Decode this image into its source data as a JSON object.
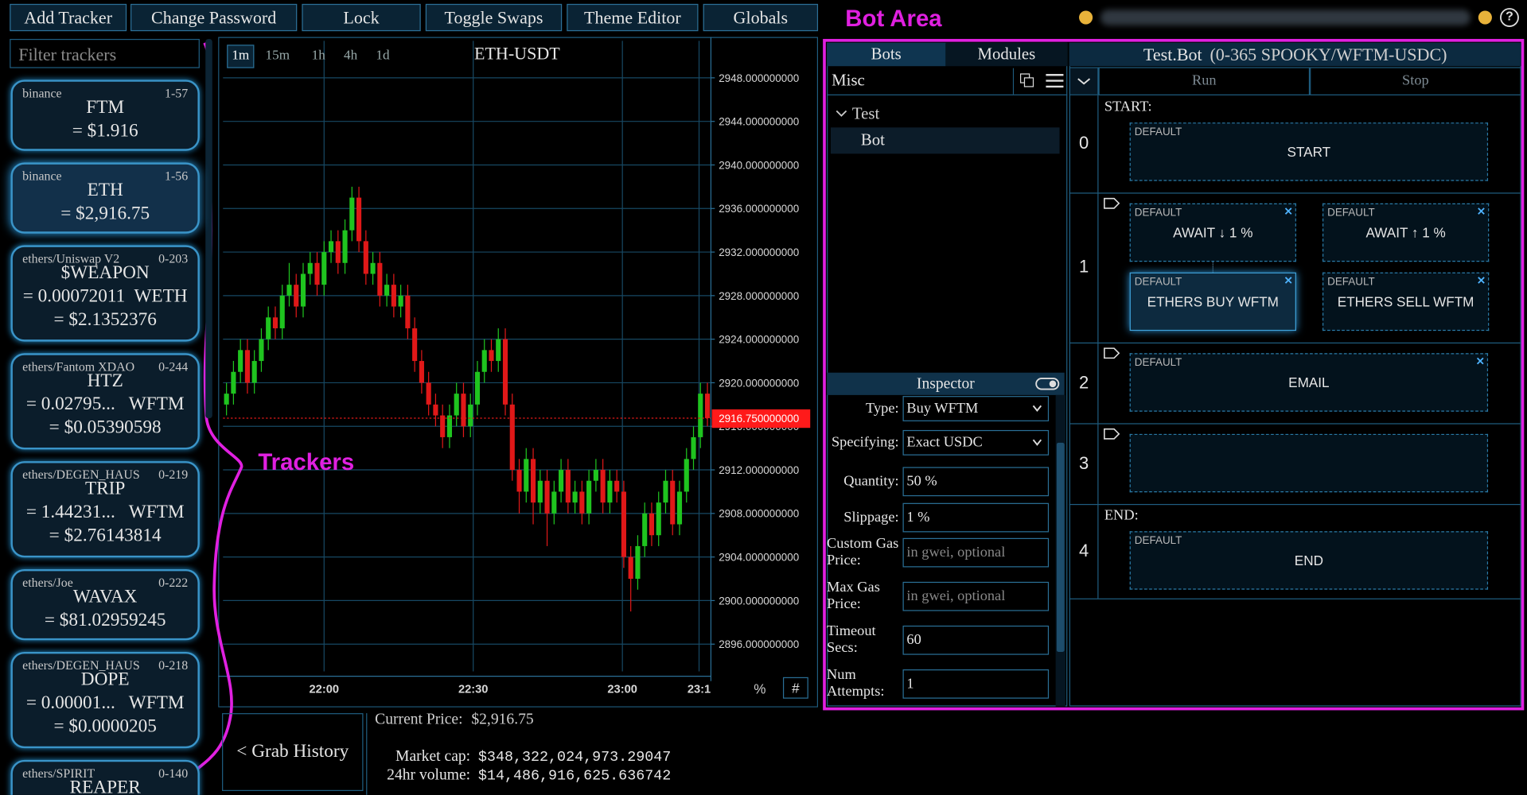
{
  "nav": {
    "buttons": [
      "Add Tracker",
      "Change Password",
      "Lock",
      "Toggle Swaps",
      "Theme Editor",
      "Globals"
    ],
    "help": "?"
  },
  "annotations": {
    "bot_area": "Bot Area",
    "trackers": "Trackers"
  },
  "sidebar": {
    "filter_placeholder": "Filter trackers",
    "trackers": [
      {
        "source": "binance",
        "id": "1-57",
        "name": "FTM",
        "lines": [
          "= $1.916"
        ]
      },
      {
        "source": "binance",
        "id": "1-56",
        "name": "ETH",
        "lines": [
          "= $2,916.75"
        ],
        "selected": true
      },
      {
        "source": "ethers/Uniswap V2",
        "id": "0-203",
        "name": "$WEAPON",
        "lines": [
          "= 0.00072011  WETH",
          "= $2.1352376"
        ]
      },
      {
        "source": "ethers/Fantom XDAO",
        "id": "0-244",
        "name": "HTZ",
        "lines": [
          "= 0.02795...   WFTM",
          "= $0.05390598"
        ]
      },
      {
        "source": "ethers/DEGEN_HAUS",
        "id": "0-219",
        "name": "TRIP",
        "lines": [
          "= 1.44231...   WFTM",
          "= $2.76143814"
        ]
      },
      {
        "source": "ethers/Joe",
        "id": "0-222",
        "name": "WAVAX",
        "lines": [
          "= $81.02959245"
        ]
      },
      {
        "source": "ethers/DEGEN_HAUS",
        "id": "0-218",
        "name": "DOPE",
        "lines": [
          "= 0.00001...   WFTM",
          "= $0.0000205"
        ]
      },
      {
        "source": "ethers/SPIRIT",
        "id": "0-140",
        "name": "REAPER",
        "lines": []
      }
    ]
  },
  "chart": {
    "type": "candlestick",
    "title": "ETH-USDT",
    "timeframes": [
      "1m",
      "15m",
      "1h",
      "4h",
      "1d"
    ],
    "active_timeframe": "1m",
    "grid": true,
    "colors": {
      "up": "#1fc41f",
      "down": "#e01818"
    },
    "ylim": [
      2893.5,
      2949.25
    ],
    "yticks": [
      {
        "value": 2896,
        "label": "2896.000000000"
      },
      {
        "value": 2900,
        "label": "2900.000000000"
      },
      {
        "value": 2904,
        "label": "2904.000000000"
      },
      {
        "value": 2908,
        "label": "2908.000000000"
      },
      {
        "value": 2912,
        "label": "2912.000000000"
      },
      {
        "value": 2916,
        "label": "2916.000000000"
      },
      {
        "value": 2920,
        "label": "2920.000000000"
      },
      {
        "value": 2924,
        "label": "2924.000000000"
      },
      {
        "value": 2928,
        "label": "2928.000000000"
      },
      {
        "value": 2932,
        "label": "2932.000000000"
      },
      {
        "value": 2936,
        "label": "2936.000000000"
      },
      {
        "value": 2940,
        "label": "2940.000000000"
      },
      {
        "value": 2944,
        "label": "2944.000000000"
      },
      {
        "value": 2948,
        "label": "2948.000000000"
      }
    ],
    "xlim": [
      0,
      70
    ],
    "xticks": [
      {
        "value": 14.5,
        "label": "22:00"
      },
      {
        "value": 35.9,
        "label": "22:30"
      },
      {
        "value": 57.3,
        "label": "23:00"
      },
      {
        "value": 68.3,
        "label": "23:1"
      }
    ],
    "current_price": {
      "value": 2916.75,
      "label": "2916.750000000"
    },
    "controls": [
      "%",
      "#"
    ],
    "candles": [
      [
        2918,
        2920,
        2917,
        2919
      ],
      [
        2919,
        2922,
        2918,
        2921
      ],
      [
        2921,
        2924,
        2920,
        2923
      ],
      [
        2923,
        2924,
        2919,
        2920
      ],
      [
        2920,
        2923,
        2919,
        2922
      ],
      [
        2922,
        2925,
        2921,
        2924
      ],
      [
        2924,
        2927,
        2923,
        2926
      ],
      [
        2926,
        2927,
        2924,
        2925
      ],
      [
        2925,
        2929,
        2924,
        2928
      ],
      [
        2928,
        2931,
        2927,
        2929
      ],
      [
        2929,
        2930,
        2926,
        2927
      ],
      [
        2927,
        2931,
        2926,
        2930
      ],
      [
        2930,
        2932,
        2929,
        2931
      ],
      [
        2931,
        2932,
        2928,
        2929
      ],
      [
        2929,
        2933,
        2928,
        2932
      ],
      [
        2932,
        2934,
        2931,
        2933
      ],
      [
        2933,
        2934,
        2930,
        2931
      ],
      [
        2931,
        2935,
        2930,
        2934
      ],
      [
        2934,
        2938,
        2933,
        2937
      ],
      [
        2937,
        2938,
        2932,
        2933
      ],
      [
        2933,
        2934,
        2929,
        2930
      ],
      [
        2930,
        2932,
        2929,
        2931
      ],
      [
        2931,
        2932,
        2927,
        2928
      ],
      [
        2928,
        2930,
        2927,
        2929
      ],
      [
        2929,
        2930,
        2926,
        2927
      ],
      [
        2927,
        2929,
        2926,
        2928
      ],
      [
        2928,
        2929,
        2924,
        2925
      ],
      [
        2925,
        2926,
        2921,
        2922
      ],
      [
        2922,
        2923,
        2919,
        2920
      ],
      [
        2920,
        2921,
        2917,
        2918
      ],
      [
        2918,
        2919,
        2916,
        2917
      ],
      [
        2917,
        2918,
        2914,
        2915
      ],
      [
        2915,
        2918,
        2914,
        2917
      ],
      [
        2917,
        2920,
        2916,
        2919
      ],
      [
        2919,
        2920,
        2915,
        2916
      ],
      [
        2916,
        2919,
        2915,
        2918
      ],
      [
        2918,
        2922,
        2917,
        2921
      ],
      [
        2921,
        2924,
        2920,
        2923
      ],
      [
        2923,
        2924,
        2921,
        2922
      ],
      [
        2922,
        2925,
        2921,
        2924
      ],
      [
        2924,
        2925,
        2917,
        2918
      ],
      [
        2918,
        2919,
        2911,
        2912
      ],
      [
        2912,
        2913,
        2908,
        2910
      ],
      [
        2910,
        2914,
        2909,
        2913
      ],
      [
        2913,
        2914,
        2907,
        2909
      ],
      [
        2909,
        2912,
        2908,
        2911
      ],
      [
        2911,
        2912,
        2905,
        2908
      ],
      [
        2908,
        2911,
        2907,
        2910
      ],
      [
        2910,
        2913,
        2909,
        2912
      ],
      [
        2912,
        2913,
        2908,
        2909
      ],
      [
        2909,
        2911,
        2908,
        2910
      ],
      [
        2910,
        2911,
        2907,
        2908
      ],
      [
        2908,
        2912,
        2907,
        2911
      ],
      [
        2911,
        2913,
        2910,
        2912
      ],
      [
        2912,
        2913,
        2908,
        2909
      ],
      [
        2909,
        2912,
        2908,
        2911
      ],
      [
        2911,
        2912,
        2909,
        2910
      ],
      [
        2910,
        2911,
        2903,
        2904
      ],
      [
        2904,
        2905,
        2899,
        2902
      ],
      [
        2902,
        2906,
        2901,
        2905
      ],
      [
        2905,
        2909,
        2904,
        2908
      ],
      [
        2908,
        2909,
        2905,
        2906
      ],
      [
        2906,
        2910,
        2905,
        2909
      ],
      [
        2909,
        2912,
        2908,
        2911
      ],
      [
        2911,
        2912,
        2906,
        2907
      ],
      [
        2907,
        2911,
        2906,
        2910
      ],
      [
        2910,
        2914,
        2909,
        2913
      ],
      [
        2913,
        2916,
        2912,
        2915
      ],
      [
        2915,
        2920,
        2914,
        2919
      ],
      [
        2919,
        2920,
        2916,
        2916.75
      ]
    ]
  },
  "market": {
    "grab_history": "< Grab History",
    "current_price_label": "Current Price:",
    "current_price": "$2,916.75",
    "rows": [
      {
        "label": "Market cap:",
        "value": "$348,322,024,973.29047"
      },
      {
        "label": "24hr volume:",
        "value": "$14,486,916,625.636742"
      }
    ]
  },
  "bots_panel": {
    "tabs": [
      "Bots",
      "Modules"
    ],
    "folder": "Misc",
    "tree": [
      {
        "label": "Test",
        "children": [
          "Bot"
        ]
      }
    ]
  },
  "inspector": {
    "title": "Inspector",
    "fields": [
      {
        "label": "Type:",
        "value": "Buy WFTM",
        "kind": "select"
      },
      {
        "label": "Specifying:",
        "value": "Exact USDC",
        "kind": "select"
      },
      {
        "label": "Quantity:",
        "value": "50 %"
      },
      {
        "label": "Slippage:",
        "value": "1 %"
      },
      {
        "label": "Custom Gas Price:",
        "placeholder": "in gwei, optional"
      },
      {
        "label": "Max Gas Price:",
        "placeholder": "in gwei, optional"
      },
      {
        "label": "Timeout Secs:",
        "value": "60"
      },
      {
        "label": "Num Attempts:",
        "value": "1"
      }
    ]
  },
  "bot": {
    "title": "Test.Bot",
    "subtitle": "(0-365 SPOOKY/WFTM-USDC)",
    "actions": [
      "Run",
      "Stop"
    ],
    "rows": [
      {
        "index": 0,
        "label": "START:",
        "blocks": [
          {
            "tag": "DEFAULT",
            "text": "START"
          }
        ]
      },
      {
        "index": 1,
        "blocks": [
          {
            "tag": "DEFAULT",
            "text": "AWAIT ↓ 1 %",
            "closable": true
          },
          {
            "tag": "DEFAULT",
            "text": "AWAIT ↑ 1 %",
            "closable": true
          },
          {
            "tag": "DEFAULT",
            "text": "ETHERS BUY WFTM",
            "closable": true,
            "selected": true
          },
          {
            "tag": "DEFAULT",
            "text": "ETHERS SELL WFTM",
            "closable": true
          }
        ]
      },
      {
        "index": 2,
        "blocks": [
          {
            "tag": "DEFAULT",
            "text": "EMAIL",
            "closable": true
          }
        ]
      },
      {
        "index": 3,
        "blocks": []
      },
      {
        "index": 4,
        "label": "END:",
        "blocks": [
          {
            "tag": "DEFAULT",
            "text": "END"
          }
        ]
      }
    ]
  }
}
